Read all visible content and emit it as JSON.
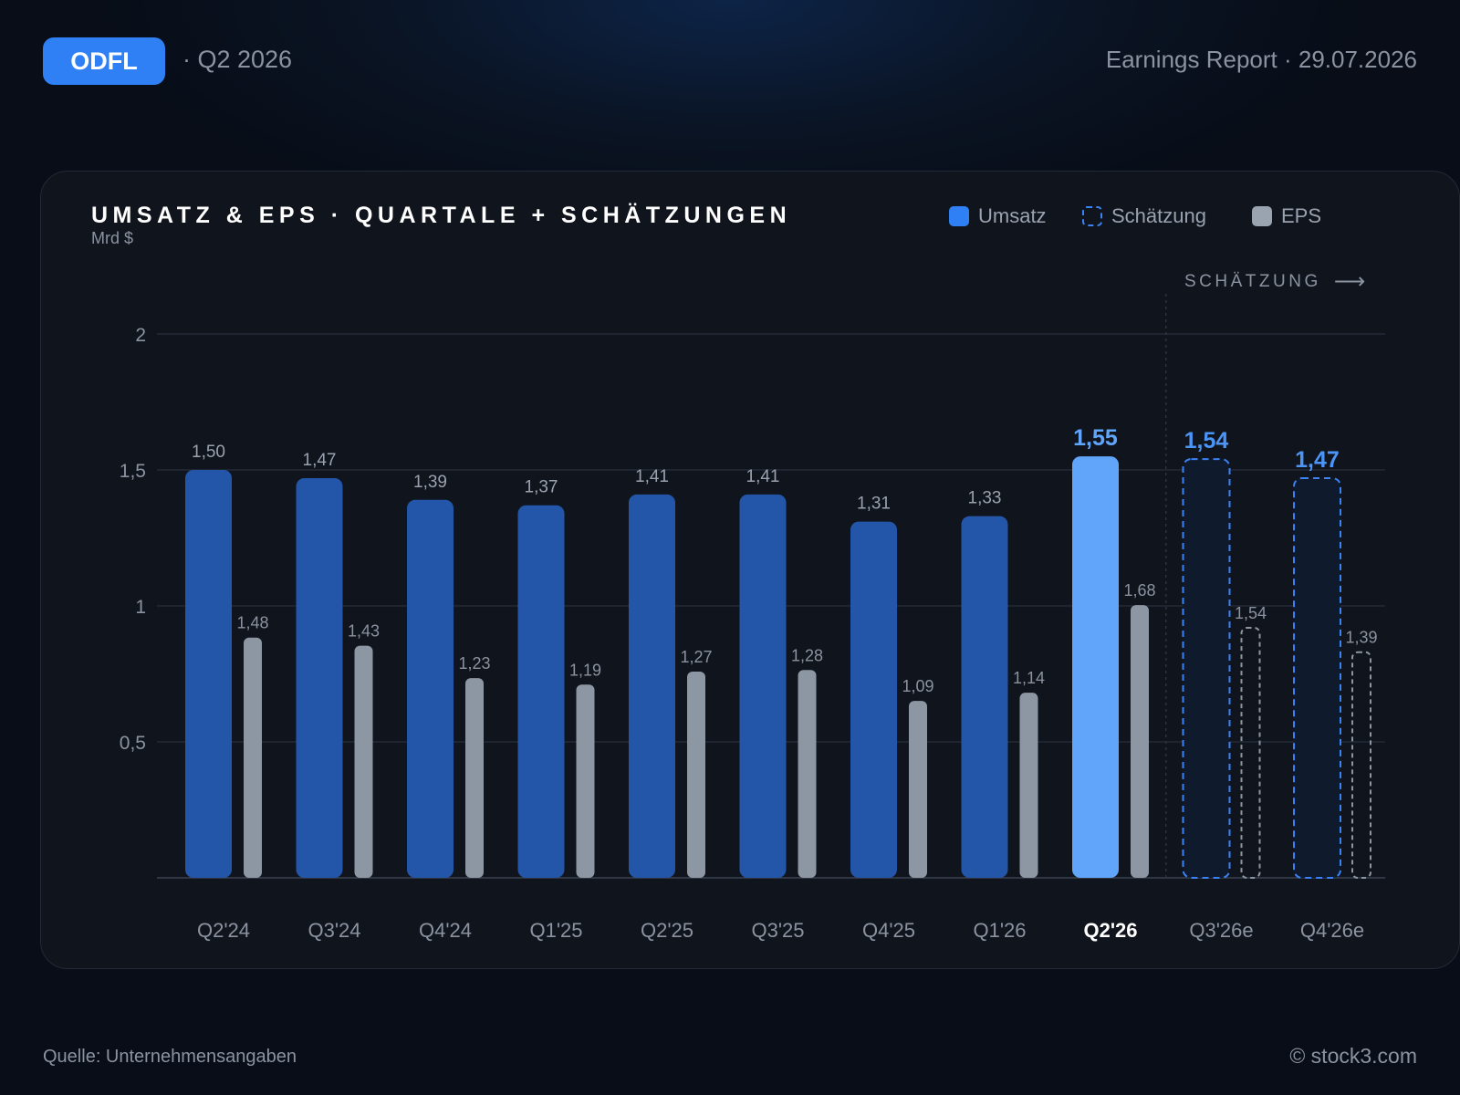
{
  "header": {
    "ticker": "ODFL",
    "quarter": "· Q2 2026",
    "report": "Earnings Report · 29.07.2026"
  },
  "legend": {
    "umsatz": "Umsatz",
    "estimate": "Schätzung",
    "eps": "EPS"
  },
  "estimate_marker": "SCHÄTZUNG",
  "colors": {
    "revenue": "#2356a8",
    "revenue_current": "#60a5fa",
    "estimate_border": "#3b82f6",
    "eps": "#8d96a3",
    "accent": "#2f7ff5"
  },
  "footer": {
    "source": "Quelle: Unternehmensangaben",
    "copyright": "© stock3.com"
  },
  "chart_data": {
    "type": "bar",
    "title": "UMSATZ & EPS · QUARTALE + SCHÄTZUNGEN",
    "ylabel": "Mrd $",
    "ylim": [
      0,
      2
    ],
    "yticks": [
      {
        "value": 0.5,
        "label": "0,5"
      },
      {
        "value": 1,
        "label": "1"
      },
      {
        "value": 1.5,
        "label": "1,5"
      },
      {
        "value": 2,
        "label": "2"
      }
    ],
    "grid": true,
    "legend_position": "top-right",
    "categories": [
      "Q2'24",
      "Q3'24",
      "Q4'24",
      "Q1'25",
      "Q2'25",
      "Q3'25",
      "Q4'25",
      "Q1'26",
      "Q2'26",
      "Q3'26e",
      "Q4'26e"
    ],
    "current_index": 8,
    "estimate_from_index": 9,
    "series": [
      {
        "name": "Umsatz",
        "values": [
          1.5,
          1.47,
          1.39,
          1.37,
          1.41,
          1.41,
          1.31,
          1.33,
          1.55,
          1.54,
          1.47
        ],
        "labels": [
          "1,50",
          "1,47",
          "1,39",
          "1,37",
          "1,41",
          "1,41",
          "1,31",
          "1,33",
          "1,55",
          "1,54",
          "1,47"
        ]
      },
      {
        "name": "EPS",
        "values": [
          1.48,
          1.43,
          1.23,
          1.19,
          1.27,
          1.28,
          1.09,
          1.14,
          1.68,
          1.54,
          1.39
        ],
        "labels": [
          "1,48",
          "1,43",
          "1,23",
          "1,19",
          "1,27",
          "1,28",
          "1,09",
          "1,14",
          "1,68",
          "1,54",
          "1,39"
        ],
        "eps_axis_max": 3.35
      }
    ]
  }
}
